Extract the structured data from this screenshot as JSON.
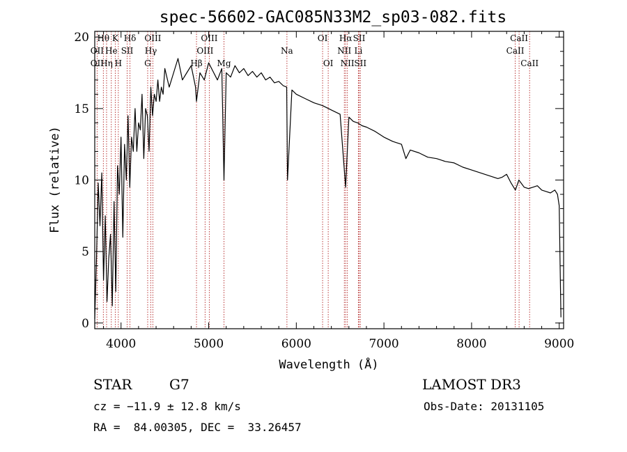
{
  "chart_data": {
    "type": "line",
    "title": "spec-56602-GAC085N33M2_sp03-082.fits",
    "xlabel": "Wavelength (Å)",
    "ylabel": "Flux (relative)",
    "xlim": [
      3700,
      9050
    ],
    "ylim": [
      -0.4,
      20.4
    ],
    "xticks": [
      4000,
      5000,
      6000,
      7000,
      8000,
      9000
    ],
    "yticks": [
      0,
      5,
      10,
      15,
      20
    ],
    "x": [
      3700,
      3720,
      3740,
      3760,
      3780,
      3800,
      3820,
      3840,
      3860,
      3880,
      3900,
      3920,
      3940,
      3960,
      3980,
      4000,
      4020,
      4040,
      4060,
      4080,
      4100,
      4120,
      4140,
      4160,
      4180,
      4200,
      4220,
      4240,
      4260,
      4280,
      4300,
      4320,
      4340,
      4360,
      4380,
      4400,
      4420,
      4440,
      4460,
      4480,
      4500,
      4550,
      4600,
      4650,
      4700,
      4750,
      4800,
      4850,
      4861,
      4900,
      4950,
      5000,
      5050,
      5100,
      5150,
      5175,
      5200,
      5250,
      5300,
      5350,
      5400,
      5450,
      5500,
      5550,
      5600,
      5650,
      5700,
      5750,
      5800,
      5850,
      5890,
      5900,
      5950,
      6000,
      6100,
      6200,
      6300,
      6400,
      6500,
      6563,
      6600,
      6650,
      6700,
      6750,
      6800,
      6900,
      7000,
      7100,
      7200,
      7250,
      7300,
      7400,
      7500,
      7600,
      7700,
      7800,
      7900,
      8000,
      8100,
      8200,
      8300,
      8350,
      8400,
      8450,
      8500,
      8540,
      8600,
      8650,
      8700,
      8750,
      8800,
      8850,
      8900,
      8950,
      8980,
      9000,
      9010,
      9020
    ],
    "flux": [
      0.3,
      4.5,
      9.8,
      6.8,
      10.5,
      3.0,
      7.5,
      1.5,
      4.5,
      6.2,
      1.2,
      8.5,
      2.2,
      11.0,
      9.0,
      13.0,
      6.0,
      12.5,
      10.0,
      14.5,
      9.5,
      13.0,
      12.0,
      15.0,
      12.0,
      14.0,
      13.5,
      16.0,
      11.5,
      15.0,
      14.5,
      12.0,
      16.5,
      14.5,
      16.0,
      15.5,
      17.0,
      15.5,
      16.5,
      16.0,
      17.8,
      16.5,
      17.5,
      18.5,
      17.0,
      17.5,
      18.0,
      16.5,
      15.5,
      17.5,
      17.0,
      18.2,
      17.6,
      17.0,
      17.8,
      10.0,
      17.5,
      17.2,
      18.0,
      17.5,
      17.8,
      17.3,
      17.6,
      17.2,
      17.5,
      17.0,
      17.2,
      16.8,
      16.9,
      16.6,
      16.5,
      10.0,
      16.3,
      16.0,
      15.7,
      15.4,
      15.2,
      14.9,
      14.6,
      9.5,
      14.4,
      14.1,
      14.0,
      13.8,
      13.7,
      13.4,
      13.0,
      12.7,
      12.5,
      11.5,
      12.1,
      11.9,
      11.6,
      11.5,
      11.3,
      11.2,
      10.9,
      10.7,
      10.5,
      10.3,
      10.1,
      10.2,
      10.4,
      9.8,
      9.3,
      10.0,
      9.5,
      9.4,
      9.5,
      9.6,
      9.3,
      9.2,
      9.1,
      9.3,
      9.0,
      8.2,
      4.0,
      0.4
    ],
    "line_labels": [
      {
        "text": "Hθ",
        "x": 3798,
        "row": 1
      },
      {
        "text": "OII",
        "x": 3727,
        "row": 2
      },
      {
        "text": "OII",
        "x": 3727,
        "row": 3
      },
      {
        "text": "He",
        "x": 3889,
        "row": 2
      },
      {
        "text": "Hη",
        "x": 3835,
        "row": 3
      },
      {
        "text": "K",
        "x": 3934,
        "row": 1
      },
      {
        "text": "SII",
        "x": 4070,
        "row": 2
      },
      {
        "text": "H",
        "x": 3969,
        "row": 3
      },
      {
        "text": "Hδ",
        "x": 4102,
        "row": 1
      },
      {
        "text": "OIII",
        "x": 4363,
        "row": 1
      },
      {
        "text": "Hγ",
        "x": 4340,
        "row": 2
      },
      {
        "text": "G",
        "x": 4304,
        "row": 3
      },
      {
        "text": "OIII",
        "x": 5007,
        "row": 1
      },
      {
        "text": "OIII",
        "x": 4959,
        "row": 2
      },
      {
        "text": "Hβ",
        "x": 4861,
        "row": 3
      },
      {
        "text": "Mg",
        "x": 5175,
        "row": 3
      },
      {
        "text": "Na",
        "x": 5893,
        "row": 2
      },
      {
        "text": "OI",
        "x": 6300,
        "row": 1
      },
      {
        "text": "OI",
        "x": 6364,
        "row": 3
      },
      {
        "text": "Hα",
        "x": 6563,
        "row": 1
      },
      {
        "text": "SII",
        "x": 6717,
        "row": 1
      },
      {
        "text": "NII",
        "x": 6548,
        "row": 2
      },
      {
        "text": "Li",
        "x": 6708,
        "row": 2
      },
      {
        "text": "NII",
        "x": 6583,
        "row": 3
      },
      {
        "text": "SII",
        "x": 6731,
        "row": 3
      },
      {
        "text": "CaII",
        "x": 8542,
        "row": 1
      },
      {
        "text": "CaII",
        "x": 8498,
        "row": 2
      },
      {
        "text": "CaII",
        "x": 8662,
        "row": 3
      }
    ],
    "line_marker_x": [
      3727,
      3798,
      3835,
      3889,
      3934,
      3969,
      4070,
      4102,
      4304,
      4340,
      4363,
      4861,
      4959,
      5007,
      5175,
      5893,
      6300,
      6364,
      6548,
      6563,
      6583,
      6708,
      6717,
      6731,
      8498,
      8542,
      8662
    ]
  },
  "info": {
    "object_class": "STAR",
    "subclass": "G7",
    "redshift": "cz = −11.9 ± 12.8 km/s",
    "coords": "RA =  84.00305, DEC =  33.26457",
    "survey": "LAMOST DR3",
    "obs_date": "Obs-Date: 20131105"
  },
  "colors": {
    "spectrum": "#000000",
    "line_marker": "#b22222",
    "axis": "#000000"
  }
}
